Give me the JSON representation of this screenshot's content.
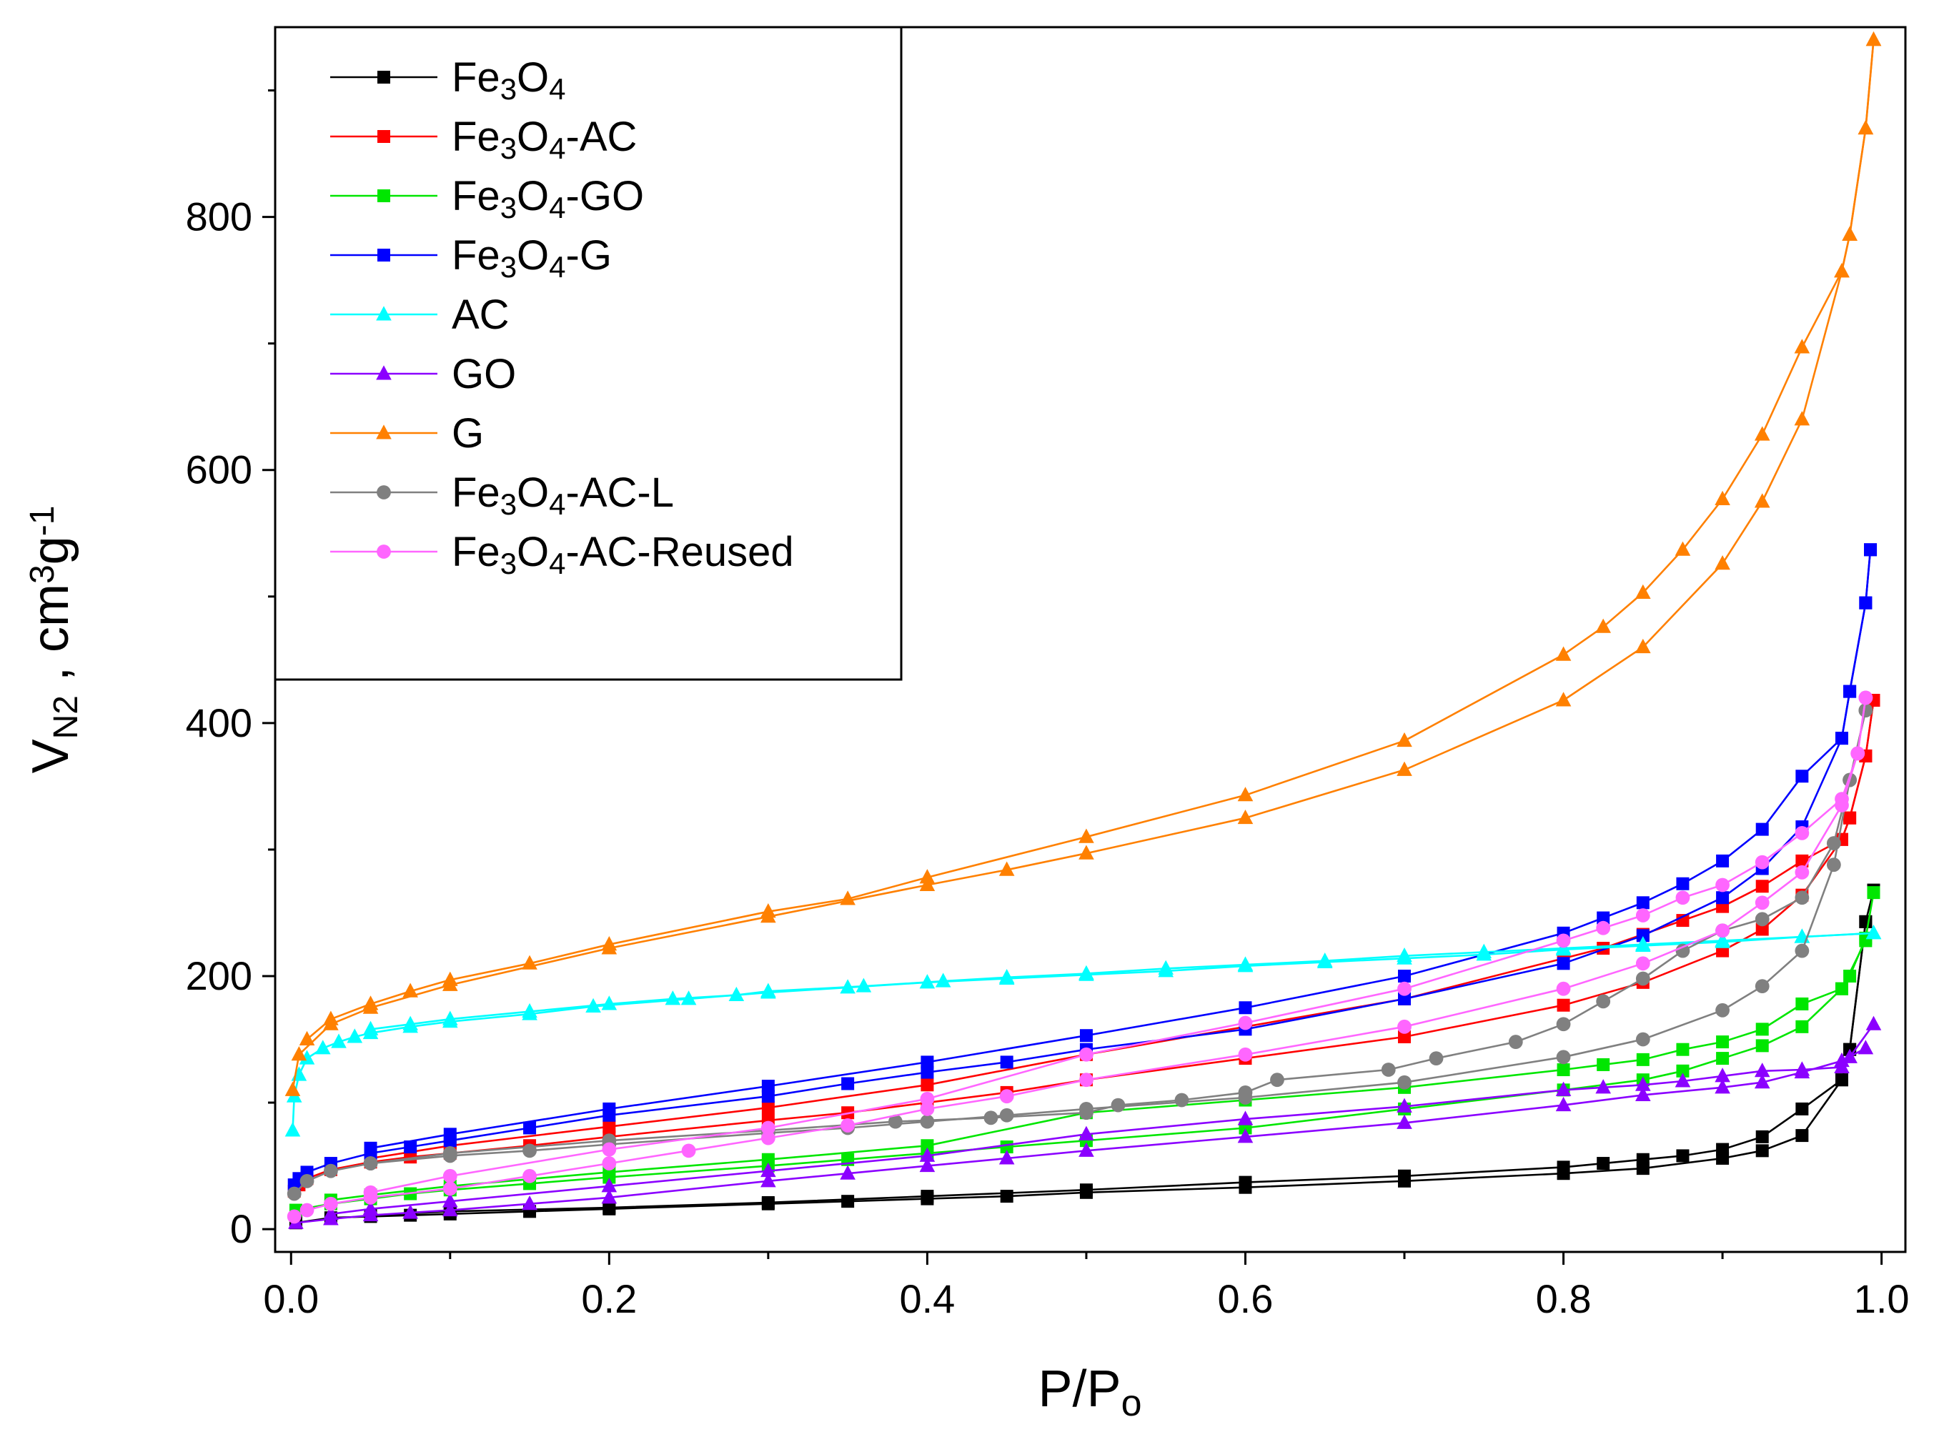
{
  "chart_data": {
    "type": "line",
    "title": "",
    "xlabel": "P/P",
    "xlabel_sub": "o",
    "ylabel": "V",
    "ylabel_sub": "N2",
    "ylabel_unit": " , cm",
    "ylabel_unit_sup1": "3",
    "ylabel_unit_g": "g",
    "ylabel_unit_sup2": "-1",
    "xlim": [
      -0.01,
      1.015
    ],
    "ylim": [
      -18,
      950
    ],
    "xticks": [
      "0.0",
      "0.2",
      "0.4",
      "0.6",
      "0.8",
      "1.0"
    ],
    "xtick_values": [
      0.0,
      0.2,
      0.4,
      0.6,
      0.8,
      1.0
    ],
    "yticks": [
      "0",
      "200",
      "400",
      "600",
      "800"
    ],
    "ytick_values": [
      0,
      200,
      400,
      600,
      800
    ],
    "legend_position": "top-left",
    "series": [
      {
        "name": "Fe3O4",
        "legend_parts": [
          [
            "Fe",
            ""
          ],
          [
            "3",
            "sub"
          ],
          [
            "O",
            ""
          ],
          [
            "4",
            "sub"
          ]
        ],
        "color": "#000000",
        "marker": "square",
        "adsorption": {
          "x": [
            0.003,
            0.025,
            0.05,
            0.075,
            0.1,
            0.15,
            0.2,
            0.3,
            0.35,
            0.4,
            0.45,
            0.5,
            0.6,
            0.7,
            0.8,
            0.85,
            0.9,
            0.925,
            0.95,
            0.975,
            0.98,
            0.99
          ],
          "y": [
            5,
            9,
            10,
            11,
            12,
            14,
            16,
            20,
            22,
            24,
            26,
            29,
            33,
            38,
            44,
            48,
            56,
            62,
            74,
            118,
            142,
            243
          ]
        },
        "desorption": {
          "x": [
            0.995,
            0.99,
            0.98,
            0.975,
            0.95,
            0.925,
            0.9,
            0.875,
            0.85,
            0.825,
            0.8,
            0.7,
            0.6,
            0.5,
            0.4,
            0.3,
            0.2,
            0.1,
            0.05
          ],
          "y": [
            268,
            243,
            142,
            118,
            95,
            73,
            63,
            58,
            55,
            52,
            49,
            42,
            37,
            31,
            26,
            21,
            17,
            14,
            11
          ]
        }
      },
      {
        "name": "Fe3O4-AC",
        "legend_parts": [
          [
            "Fe",
            ""
          ],
          [
            "3",
            "sub"
          ],
          [
            "O",
            ""
          ],
          [
            "4",
            "sub"
          ],
          [
            "-AC",
            ""
          ]
        ],
        "color": "#ff0000",
        "marker": "square",
        "adsorption": {
          "x": [
            0.002,
            0.005,
            0.01,
            0.025,
            0.05,
            0.075,
            0.1,
            0.15,
            0.2,
            0.3,
            0.35,
            0.4,
            0.45,
            0.5,
            0.6,
            0.7,
            0.8,
            0.85,
            0.9,
            0.925,
            0.95,
            0.975,
            0.98,
            0.99,
            0.995
          ],
          "y": [
            30,
            35,
            40,
            47,
            53,
            57,
            60,
            66,
            73,
            86,
            92,
            100,
            108,
            118,
            135,
            152,
            177,
            195,
            220,
            237,
            264,
            308,
            325,
            374,
            418
          ]
        },
        "desorption": {
          "x": [
            0.995,
            0.99,
            0.98,
            0.975,
            0.95,
            0.925,
            0.9,
            0.875,
            0.85,
            0.825,
            0.8,
            0.7,
            0.6,
            0.5,
            0.4,
            0.3,
            0.2,
            0.1,
            0.05
          ],
          "y": [
            418,
            374,
            325,
            308,
            291,
            271,
            255,
            244,
            233,
            222,
            214,
            182,
            160,
            138,
            114,
            96,
            81,
            66,
            56
          ]
        }
      },
      {
        "name": "Fe3O4-GO",
        "legend_parts": [
          [
            "Fe",
            ""
          ],
          [
            "3",
            "sub"
          ],
          [
            "O",
            ""
          ],
          [
            "4",
            "sub"
          ],
          [
            "-GO",
            ""
          ]
        ],
        "color": "#00e600",
        "marker": "square",
        "adsorption": {
          "x": [
            0.003,
            0.025,
            0.05,
            0.075,
            0.1,
            0.15,
            0.2,
            0.3,
            0.35,
            0.4,
            0.45,
            0.5,
            0.6,
            0.7,
            0.8,
            0.85,
            0.875,
            0.9,
            0.925,
            0.95,
            0.975,
            0.99
          ],
          "y": [
            15,
            20,
            24,
            28,
            31,
            36,
            41,
            50,
            55,
            60,
            65,
            70,
            80,
            95,
            110,
            118,
            125,
            135,
            145,
            160,
            190,
            228
          ]
        },
        "desorption": {
          "x": [
            0.995,
            0.99,
            0.98,
            0.975,
            0.95,
            0.925,
            0.9,
            0.875,
            0.85,
            0.825,
            0.8,
            0.7,
            0.6,
            0.5,
            0.4,
            0.3,
            0.2,
            0.1,
            0.05,
            0.025
          ],
          "y": [
            266,
            230,
            200,
            190,
            178,
            158,
            148,
            142,
            134,
            130,
            126,
            112,
            102,
            92,
            66,
            55,
            45,
            34,
            27,
            23
          ]
        }
      },
      {
        "name": "Fe3O4-G",
        "legend_parts": [
          [
            "Fe",
            ""
          ],
          [
            "3",
            "sub"
          ],
          [
            "O",
            ""
          ],
          [
            "4",
            "sub"
          ],
          [
            "-G",
            ""
          ]
        ],
        "color": "#0000ff",
        "marker": "square",
        "adsorption": {
          "x": [
            0.002,
            0.005,
            0.01,
            0.025,
            0.05,
            0.075,
            0.1,
            0.15,
            0.2,
            0.3,
            0.35,
            0.4,
            0.45,
            0.5,
            0.6,
            0.7,
            0.8,
            0.85,
            0.9,
            0.925,
            0.95,
            0.975,
            0.98,
            0.99,
            0.993
          ],
          "y": [
            35,
            40,
            45,
            52,
            60,
            65,
            70,
            80,
            90,
            105,
            115,
            124,
            132,
            142,
            158,
            182,
            210,
            232,
            262,
            285,
            318,
            388,
            425,
            495,
            537
          ]
        },
        "desorption": {
          "x": [
            0.993,
            0.99,
            0.98,
            0.975,
            0.95,
            0.925,
            0.9,
            0.875,
            0.85,
            0.825,
            0.8,
            0.7,
            0.6,
            0.5,
            0.4,
            0.3,
            0.2,
            0.1,
            0.05
          ],
          "y": [
            537,
            495,
            425,
            388,
            358,
            316,
            291,
            273,
            258,
            246,
            234,
            200,
            175,
            153,
            132,
            113,
            95,
            75,
            64
          ]
        }
      },
      {
        "name": "AC",
        "legend_parts": [
          [
            "AC",
            ""
          ]
        ],
        "color": "#00ffff",
        "marker": "triangle",
        "adsorption": {
          "x": [
            0.001,
            0.002,
            0.005,
            0.01,
            0.02,
            0.03,
            0.04,
            0.05,
            0.075,
            0.1,
            0.15,
            0.19,
            0.25,
            0.3,
            0.35,
            0.4,
            0.45,
            0.5,
            0.55,
            0.6,
            0.65,
            0.7,
            0.75,
            0.8,
            0.85,
            0.9,
            0.95,
            0.995
          ],
          "y": [
            78,
            105,
            122,
            135,
            143,
            148,
            152,
            155,
            160,
            164,
            170,
            176,
            182,
            187,
            191,
            195,
            198,
            201,
            204,
            208,
            211,
            214,
            217,
            221,
            224,
            227,
            231,
            234
          ]
        },
        "desorption": {
          "x": [
            0.995,
            0.95,
            0.9,
            0.85,
            0.8,
            0.75,
            0.7,
            0.65,
            0.6,
            0.55,
            0.5,
            0.45,
            0.41,
            0.36,
            0.3,
            0.28,
            0.24,
            0.2,
            0.15,
            0.1,
            0.075,
            0.05
          ],
          "y": [
            234,
            231,
            228,
            225,
            222,
            219,
            216,
            212,
            209,
            206,
            202,
            199,
            196,
            192,
            188,
            185,
            182,
            178,
            172,
            166,
            162,
            158
          ]
        }
      },
      {
        "name": "GO",
        "legend_parts": [
          [
            "GO",
            ""
          ]
        ],
        "color": "#8b00ff",
        "marker": "triangle",
        "adsorption": {
          "x": [
            0.003,
            0.025,
            0.05,
            0.075,
            0.1,
            0.15,
            0.2,
            0.3,
            0.35,
            0.4,
            0.45,
            0.5,
            0.6,
            0.7,
            0.8,
            0.85,
            0.9,
            0.925,
            0.95,
            0.975,
            0.99
          ],
          "y": [
            5,
            8,
            11,
            13,
            15,
            20,
            25,
            38,
            44,
            50,
            56,
            62,
            73,
            84,
            98,
            106,
            112,
            116,
            124,
            133,
            143
          ]
        },
        "desorption": {
          "x": [
            0.995,
            0.98,
            0.975,
            0.95,
            0.925,
            0.9,
            0.875,
            0.85,
            0.825,
            0.8,
            0.7,
            0.6,
            0.5,
            0.4,
            0.3,
            0.2,
            0.1,
            0.05,
            0.025
          ],
          "y": [
            162,
            136,
            128,
            126,
            125,
            121,
            117,
            114,
            112,
            110,
            97,
            87,
            75,
            58,
            46,
            34,
            22,
            16,
            12
          ]
        }
      },
      {
        "name": "G",
        "legend_parts": [
          [
            "G",
            ""
          ]
        ],
        "color": "#ff8000",
        "marker": "triangle",
        "adsorption": {
          "x": [
            0.001,
            0.005,
            0.025,
            0.05,
            0.1,
            0.2,
            0.3,
            0.4,
            0.45,
            0.5,
            0.6,
            0.7,
            0.8,
            0.85,
            0.9,
            0.925,
            0.95,
            0.975,
            0.98,
            0.99,
            0.995
          ],
          "y": [
            110,
            138,
            162,
            175,
            193,
            222,
            247,
            272,
            284,
            297,
            325,
            363,
            418,
            460,
            526,
            575,
            640,
            757,
            786,
            870,
            940
          ]
        },
        "desorption": {
          "x": [
            0.995,
            0.99,
            0.98,
            0.975,
            0.95,
            0.925,
            0.9,
            0.875,
            0.85,
            0.825,
            0.8,
            0.7,
            0.6,
            0.5,
            0.4,
            0.35,
            0.3,
            0.2,
            0.15,
            0.1,
            0.075,
            0.05,
            0.025,
            0.01
          ],
          "y": [
            940,
            870,
            786,
            757,
            697,
            628,
            577,
            537,
            503,
            476,
            454,
            386,
            343,
            310,
            278,
            261,
            251,
            225,
            210,
            197,
            188,
            178,
            166,
            150
          ]
        }
      },
      {
        "name": "Fe3O4-AC-L",
        "legend_parts": [
          [
            "Fe",
            ""
          ],
          [
            "3",
            "sub"
          ],
          [
            "O",
            ""
          ],
          [
            "4",
            "sub"
          ],
          [
            "-AC-L",
            ""
          ]
        ],
        "color": "#808080",
        "marker": "circle",
        "adsorption": {
          "x": [
            0.002,
            0.01,
            0.025,
            0.05,
            0.1,
            0.15,
            0.2,
            0.3,
            0.35,
            0.4,
            0.45,
            0.5,
            0.6,
            0.7,
            0.8,
            0.85,
            0.9,
            0.925,
            0.95,
            0.97,
            0.98,
            0.99
          ],
          "y": [
            28,
            38,
            46,
            52,
            58,
            62,
            67,
            76,
            80,
            85,
            90,
            95,
            104,
            116,
            136,
            150,
            173,
            192,
            220,
            288,
            355,
            410
          ]
        },
        "desorption": {
          "x": [
            0.99,
            0.98,
            0.97,
            0.95,
            0.925,
            0.9,
            0.875,
            0.85,
            0.825,
            0.8,
            0.77,
            0.72,
            0.69,
            0.62,
            0.6,
            0.56,
            0.52,
            0.5,
            0.44,
            0.38,
            0.3,
            0.2,
            0.1,
            0.05
          ],
          "y": [
            410,
            355,
            305,
            262,
            245,
            236,
            220,
            198,
            180,
            162,
            148,
            135,
            126,
            118,
            108,
            102,
            98,
            92,
            88,
            85,
            78,
            70,
            60,
            52
          ]
        }
      },
      {
        "name": "Fe3O4-AC-Reused",
        "legend_parts": [
          [
            "Fe",
            ""
          ],
          [
            "3",
            "sub"
          ],
          [
            "O",
            ""
          ],
          [
            "4",
            "sub"
          ],
          [
            "-AC-Reused",
            ""
          ]
        ],
        "color": "#ff66ff",
        "marker": "circle",
        "adsorption": {
          "x": [
            0.002,
            0.01,
            0.025,
            0.05,
            0.1,
            0.15,
            0.2,
            0.25,
            0.3,
            0.35,
            0.4,
            0.45,
            0.5,
            0.6,
            0.7,
            0.8,
            0.85,
            0.9,
            0.925,
            0.95,
            0.975,
            0.985,
            0.99
          ],
          "y": [
            10,
            15,
            20,
            25,
            32,
            42,
            52,
            62,
            72,
            82,
            95,
            105,
            118,
            138,
            160,
            190,
            210,
            236,
            258,
            282,
            335,
            376,
            420
          ]
        },
        "desorption": {
          "x": [
            0.99,
            0.985,
            0.975,
            0.95,
            0.925,
            0.9,
            0.875,
            0.85,
            0.825,
            0.8,
            0.7,
            0.6,
            0.5,
            0.4,
            0.3,
            0.2,
            0.1,
            0.05
          ],
          "y": [
            420,
            376,
            340,
            313,
            290,
            272,
            262,
            248,
            238,
            228,
            190,
            163,
            138,
            103,
            80,
            63,
            42,
            29
          ]
        }
      }
    ]
  }
}
